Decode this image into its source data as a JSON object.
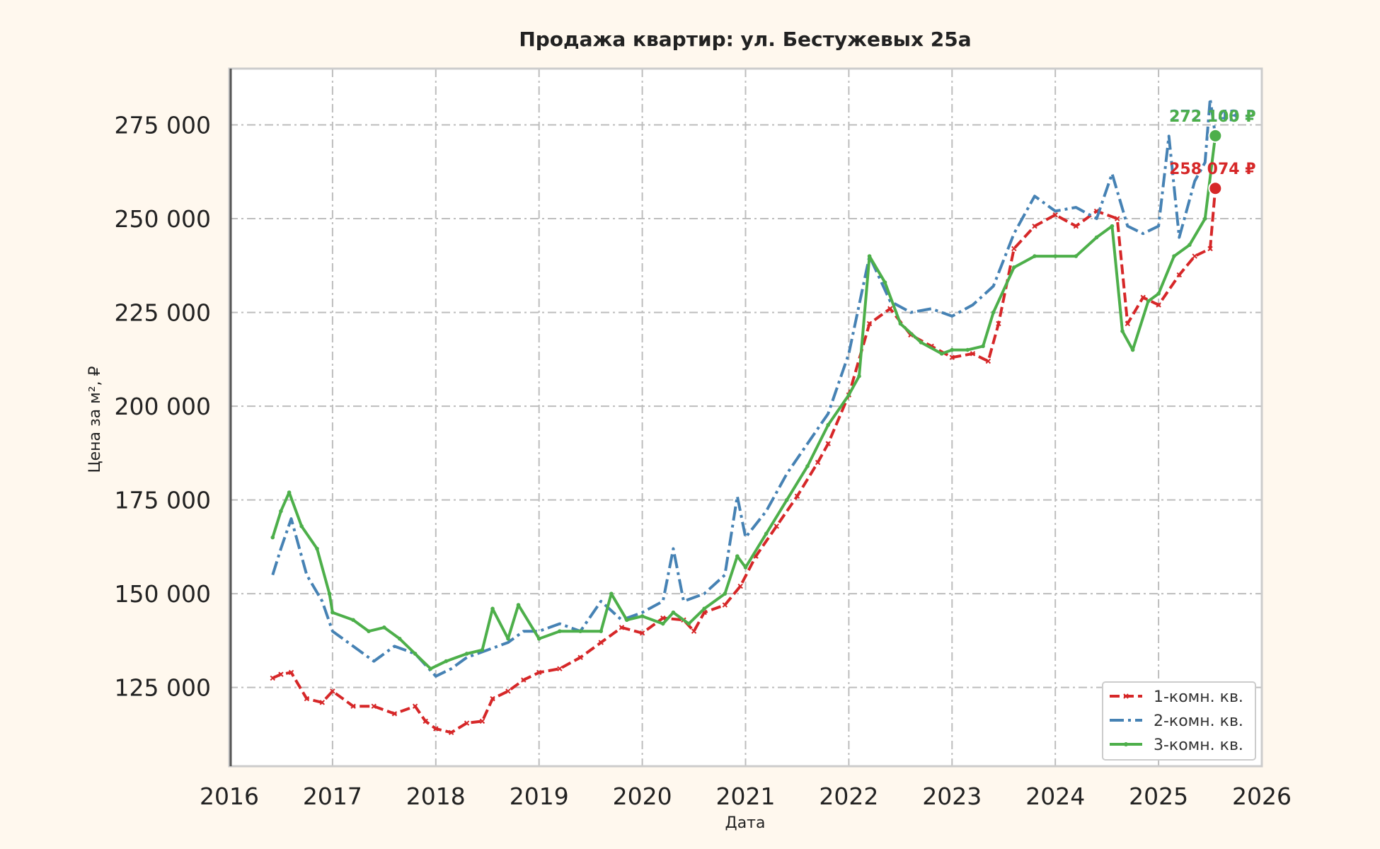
{
  "chart_data": {
    "type": "line",
    "title": "Продажа квартир: ул. Бестужевых 25а",
    "xlabel": "Дата",
    "ylabel": "Цена за м², ₽",
    "xlim": [
      2016,
      2026
    ],
    "ylim": [
      104000,
      290000
    ],
    "x_ticks": [
      "2016",
      "2017",
      "2018",
      "2019",
      "2020",
      "2021",
      "2022",
      "2023",
      "2024",
      "2025",
      "2026"
    ],
    "y_ticks": [
      "125 000",
      "150 000",
      "175 000",
      "200 000",
      "225 000",
      "250 000",
      "275 000"
    ],
    "grid": true,
    "legend_position": "bottom-right",
    "series": [
      {
        "name": "1-комн. кв.",
        "color": "#d62728",
        "line_style": "dashed",
        "marker": "x",
        "x": [
          2016.42,
          2016.5,
          2016.6,
          2016.75,
          2016.9,
          2017.0,
          2017.2,
          2017.4,
          2017.6,
          2017.8,
          2017.9,
          2018.0,
          2018.15,
          2018.3,
          2018.45,
          2018.55,
          2018.7,
          2018.85,
          2019.0,
          2019.2,
          2019.4,
          2019.6,
          2019.8,
          2020.0,
          2020.2,
          2020.4,
          2020.5,
          2020.6,
          2020.8,
          2020.95,
          2021.1,
          2021.3,
          2021.5,
          2021.7,
          2021.8,
          2022.0,
          2022.2,
          2022.4,
          2022.6,
          2022.8,
          2023.0,
          2023.2,
          2023.35,
          2023.45,
          2023.6,
          2023.8,
          2024.0,
          2024.2,
          2024.4,
          2024.6,
          2024.7,
          2024.85,
          2025.0,
          2025.2,
          2025.35,
          2025.5,
          2025.55
        ],
        "y": [
          127500,
          128500,
          129000,
          122000,
          121000,
          124000,
          120000,
          120000,
          118000,
          120000,
          116000,
          114000,
          113000,
          115500,
          116000,
          122000,
          124000,
          127000,
          129000,
          130000,
          133000,
          137000,
          141000,
          139500,
          143500,
          143000,
          140000,
          145000,
          147000,
          152000,
          160000,
          168000,
          176000,
          185000,
          190000,
          203000,
          222000,
          226000,
          219000,
          216000,
          213000,
          214000,
          212000,
          222000,
          242000,
          248000,
          251000,
          248000,
          252000,
          250000,
          222000,
          229000,
          227000,
          235000,
          240000,
          242000,
          258074
        ]
      },
      {
        "name": "2-комн. кв.",
        "color": "#4682b4",
        "line_style": "dashdot",
        "marker": "none",
        "x": [
          2016.42,
          2016.5,
          2016.6,
          2016.75,
          2016.9,
          2017.0,
          2017.2,
          2017.4,
          2017.6,
          2017.8,
          2018.0,
          2018.15,
          2018.3,
          2018.5,
          2018.7,
          2018.85,
          2019.0,
          2019.2,
          2019.4,
          2019.6,
          2019.8,
          2020.0,
          2020.2,
          2020.3,
          2020.4,
          2020.6,
          2020.8,
          2020.92,
          2021.0,
          2021.2,
          2021.4,
          2021.6,
          2021.8,
          2022.0,
          2022.2,
          2022.4,
          2022.6,
          2022.8,
          2023.0,
          2023.2,
          2023.4,
          2023.6,
          2023.8,
          2024.0,
          2024.2,
          2024.4,
          2024.55,
          2024.7,
          2024.85,
          2025.0,
          2025.1,
          2025.2,
          2025.35,
          2025.45,
          2025.5,
          2025.55
        ],
        "y": [
          155000,
          162000,
          170000,
          155000,
          148000,
          140000,
          136000,
          132000,
          136000,
          134000,
          128000,
          130000,
          133000,
          135000,
          137000,
          140000,
          140000,
          142000,
          140000,
          148000,
          143000,
          145000,
          148000,
          162000,
          148000,
          150000,
          155000,
          176000,
          165000,
          172000,
          182000,
          190000,
          198000,
          214000,
          240000,
          228000,
          225000,
          226000,
          224000,
          227000,
          232000,
          246000,
          256000,
          252000,
          253000,
          250000,
          262000,
          248000,
          246000,
          248000,
          272000,
          245000,
          260000,
          265000,
          282000,
          272143
        ]
      },
      {
        "name": "3-комн. кв.",
        "color": "#4daf4a",
        "line_style": "solid",
        "marker": "dot",
        "x": [
          2016.42,
          2016.5,
          2016.58,
          2016.7,
          2016.85,
          2016.97,
          2017.0,
          2017.2,
          2017.35,
          2017.5,
          2017.65,
          2017.8,
          2017.95,
          2018.1,
          2018.3,
          2018.45,
          2018.55,
          2018.7,
          2018.8,
          2019.0,
          2019.2,
          2019.4,
          2019.6,
          2019.7,
          2019.85,
          2020.0,
          2020.2,
          2020.3,
          2020.45,
          2020.6,
          2020.8,
          2020.92,
          2021.0,
          2021.2,
          2021.4,
          2021.6,
          2021.8,
          2022.0,
          2022.1,
          2022.2,
          2022.35,
          2022.5,
          2022.7,
          2022.9,
          2023.0,
          2023.15,
          2023.3,
          2023.4,
          2023.6,
          2023.8,
          2024.0,
          2024.2,
          2024.4,
          2024.55,
          2024.65,
          2024.75,
          2024.9,
          2025.0,
          2025.15,
          2025.3,
          2025.45,
          2025.55
        ],
        "y": [
          165000,
          172000,
          177000,
          168000,
          162000,
          150000,
          145000,
          143000,
          140000,
          141000,
          138000,
          134000,
          130000,
          132000,
          134000,
          135000,
          146000,
          138000,
          147000,
          138000,
          140000,
          140000,
          140000,
          150000,
          143000,
          144000,
          142000,
          145000,
          142000,
          146000,
          150000,
          160000,
          157000,
          166000,
          175000,
          184000,
          195000,
          203000,
          208000,
          240000,
          233000,
          222000,
          217000,
          214000,
          215000,
          215000,
          216000,
          225000,
          237000,
          240000,
          240000,
          240000,
          245000,
          248000,
          220000,
          215000,
          228000,
          230000,
          240000,
          243000,
          250000,
          272100
        ]
      }
    ],
    "end_labels": [
      {
        "series": "1-комн. кв.",
        "text": "258 074 ₽"
      },
      {
        "series": "2-комн. кв.",
        "text": "272 143 ₽"
      },
      {
        "series": "3-комн. кв.",
        "text": "272 100 ₽"
      }
    ]
  },
  "colors": {
    "background": "#fff8ee",
    "plot_background": "#ffffff",
    "grid": "#bdbdbd",
    "axis_frame": "#cccccc"
  }
}
